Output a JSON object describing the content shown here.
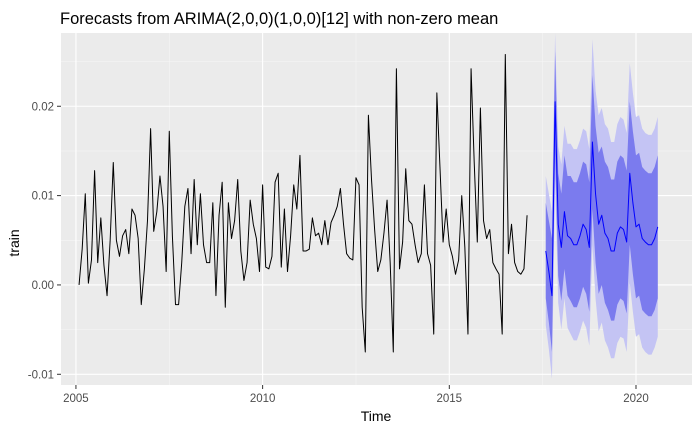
{
  "chart_data": {
    "type": "line",
    "title": "Forecasts from ARIMA(2,0,0)(1,0,0)[12] with non-zero mean",
    "xlabel": "Time",
    "ylabel": "train",
    "xlim": [
      2004.6,
      2021.5
    ],
    "ylim": [
      -0.0112,
      0.0282
    ],
    "x_ticks": [
      2005,
      2010,
      2015,
      2020
    ],
    "y_ticks": [
      -0.01,
      0.0,
      0.01,
      0.02
    ],
    "x_tick_labels": [
      "2005",
      "2010",
      "2015",
      "2020"
    ],
    "y_tick_labels": [
      "-0.01",
      "0.00",
      "0.01",
      "0.02"
    ],
    "grid": true,
    "legend": "none",
    "series": [
      {
        "kind": "observed",
        "start": 2005.0833,
        "step": 0.08333,
        "values": [
          0.0,
          0.004,
          0.0102,
          0.0002,
          0.0028,
          0.0128,
          0.0025,
          0.0075,
          0.0022,
          -0.0012,
          0.005,
          0.0137,
          0.005,
          0.0032,
          0.0055,
          0.0062,
          0.0035,
          0.0085,
          0.0078,
          0.0052,
          -0.0022,
          0.0018,
          0.0072,
          0.0175,
          0.006,
          0.0082,
          0.0122,
          0.0088,
          0.0015,
          0.0172,
          0.0055,
          -0.0022,
          -0.0022,
          0.0025,
          0.0088,
          0.0108,
          0.0035,
          0.0118,
          0.0045,
          0.0102,
          0.0045,
          0.0025,
          0.0025,
          0.0092,
          -0.0012,
          0.0078,
          0.0115,
          -0.0025,
          0.0092,
          0.0052,
          0.0072,
          0.0118,
          0.0038,
          0.0005,
          0.0025,
          0.0095,
          0.0068,
          0.0052,
          0.0015,
          0.0112,
          0.002,
          0.0018,
          0.0032,
          0.0115,
          0.0125,
          0.002,
          0.0085,
          0.0015,
          0.0055,
          0.0112,
          0.0085,
          0.0145,
          0.0038,
          0.0038,
          0.004,
          0.0075,
          0.0055,
          0.0058,
          0.0045,
          0.0072,
          0.0045,
          0.007,
          0.0078,
          0.0088,
          0.0108,
          0.0068,
          0.0035,
          0.003,
          0.0028,
          0.012,
          0.0112,
          -0.0025,
          -0.0075,
          0.019,
          0.0118,
          0.0062,
          0.0015,
          0.0028,
          0.0058,
          0.0095,
          0.0025,
          -0.0075,
          0.0242,
          0.0018,
          0.0048,
          0.013,
          0.0072,
          0.0068,
          0.0045,
          0.0025,
          0.0035,
          0.0112,
          0.0035,
          0.0022,
          -0.0055,
          0.0215,
          0.0132,
          0.0048,
          0.0085,
          0.0045,
          0.0032,
          0.0012,
          0.0028,
          0.01,
          0.0042,
          -0.0055,
          0.0242,
          0.0138,
          0.0048,
          0.0198,
          0.0072,
          0.0052,
          0.0062,
          0.0025,
          0.0018,
          0.0012,
          -0.0055,
          0.0258,
          0.0035,
          0.0068,
          0.0025,
          0.0015,
          0.0012,
          0.0018,
          0.0078
        ]
      },
      {
        "kind": "forecast",
        "start": 2017.5833,
        "step": 0.08333,
        "values": [
          0.0038,
          0.0015,
          -0.0012,
          0.0205,
          0.0068,
          0.0042,
          0.0082,
          0.0055,
          0.0052,
          0.0045,
          0.0045,
          0.0055,
          0.0068,
          0.0062,
          0.0042,
          0.016,
          0.0102,
          0.0068,
          0.0078,
          0.0058,
          0.0052,
          0.0038,
          0.0038,
          0.0058,
          0.0065,
          0.0062,
          0.0048,
          0.0125,
          0.0092,
          0.0065,
          0.0068,
          0.0052,
          0.0048,
          0.0045,
          0.0045,
          0.0052,
          0.0065
        ],
        "lower_80": [
          -0.0015,
          -0.0042,
          -0.0075,
          0.0148,
          0.001,
          -0.0018,
          0.0018,
          -0.0012,
          -0.0018,
          -0.0025,
          -0.0025,
          -0.0015,
          -0.0002,
          -0.001,
          -0.003,
          0.0085,
          0.0025,
          -0.001,
          0.0,
          -0.002,
          -0.0028,
          -0.004,
          -0.004,
          -0.0022,
          -0.0015,
          -0.0018,
          -0.0032,
          0.0045,
          0.0012,
          -0.0015,
          -0.0012,
          -0.0028,
          -0.0032,
          -0.0035,
          -0.0035,
          -0.0028,
          -0.0015
        ],
        "upper_80": [
          0.0092,
          0.0072,
          0.0052,
          0.0262,
          0.0125,
          0.0102,
          0.0145,
          0.0122,
          0.0122,
          0.0115,
          0.0115,
          0.0125,
          0.0138,
          0.0135,
          0.0115,
          0.0235,
          0.0178,
          0.0148,
          0.0155,
          0.0138,
          0.0132,
          0.0118,
          0.0118,
          0.0138,
          0.0145,
          0.0142,
          0.0128,
          0.0205,
          0.0172,
          0.0145,
          0.0148,
          0.0132,
          0.0128,
          0.0125,
          0.0125,
          0.0132,
          0.0145
        ],
        "lower_95": [
          -0.0045,
          -0.0072,
          -0.0105,
          0.0118,
          -0.002,
          -0.005,
          -0.0015,
          -0.0048,
          -0.0055,
          -0.0062,
          -0.0062,
          -0.0052,
          -0.004,
          -0.0048,
          -0.0068,
          0.0045,
          -0.0015,
          -0.0052,
          -0.0042,
          -0.0062,
          -0.007,
          -0.0082,
          -0.0082,
          -0.0065,
          -0.0058,
          -0.006,
          -0.0075,
          0.0002,
          -0.003,
          -0.0058,
          -0.0055,
          -0.007,
          -0.0075,
          -0.0078,
          -0.0078,
          -0.007,
          -0.0058
        ],
        "upper_95": [
          0.0122,
          0.0102,
          0.0082,
          0.0282,
          0.0155,
          0.0135,
          0.0178,
          0.0158,
          0.0158,
          0.0152,
          0.0152,
          0.0162,
          0.0175,
          0.0172,
          0.0152,
          0.0275,
          0.0218,
          0.019,
          0.0198,
          0.018,
          0.0175,
          0.016,
          0.016,
          0.018,
          0.0188,
          0.0185,
          0.017,
          0.0248,
          0.0215,
          0.0188,
          0.019,
          0.0175,
          0.017,
          0.0168,
          0.0168,
          0.0175,
          0.0188
        ]
      }
    ]
  },
  "colors": {
    "panel_background": "#ebebeb",
    "grid_major": "#ffffff",
    "grid_minor": "#f5f5f5",
    "observed_line": "#000000",
    "forecast_line": "#0000ff",
    "band_95": "#c4c4f4",
    "band_80": "#7b7bee",
    "tick_label": "#4d4d4d",
    "tick_mark": "#333333"
  }
}
